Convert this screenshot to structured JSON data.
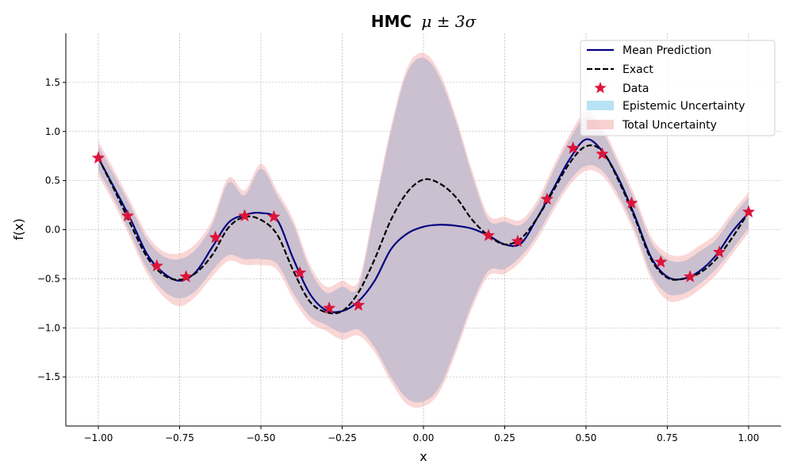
{
  "chart_data": {
    "type": "line",
    "title": "HMC",
    "title_math": "μ ± 3σ",
    "xlabel": "x",
    "ylabel": "f(x)",
    "xlim": [
      -1.1,
      1.1
    ],
    "ylim": [
      -2.0,
      2.0
    ],
    "x_ticks": [
      -1.0,
      -0.75,
      -0.5,
      -0.25,
      0.0,
      0.25,
      0.5,
      0.75,
      1.0
    ],
    "x_tick_labels": [
      "−1.00",
      "−0.75",
      "−0.50",
      "−0.25",
      "0.00",
      "0.25",
      "0.50",
      "0.75",
      "1.00"
    ],
    "y_ticks": [
      -1.5,
      -1.0,
      -0.5,
      0.0,
      0.5,
      1.0,
      1.5
    ],
    "y_tick_labels": [
      "−1.5",
      "−1.0",
      "−0.5",
      "0.0",
      "0.5",
      "1.0",
      "1.5"
    ],
    "grid": true,
    "legend_position": "top-right",
    "colors": {
      "mean": "#00007f",
      "exact": "#000000",
      "data": "#dc143c",
      "epistemic": "#87ceeb",
      "total": "#f4a6a6",
      "band_overlap": "#c7bfcf"
    },
    "x": [
      -1.0,
      -0.95,
      -0.9,
      -0.85,
      -0.8,
      -0.75,
      -0.7,
      -0.65,
      -0.6,
      -0.55,
      -0.5,
      -0.45,
      -0.4,
      -0.35,
      -0.3,
      -0.25,
      -0.2,
      -0.15,
      -0.1,
      -0.05,
      0.0,
      0.05,
      0.1,
      0.15,
      0.2,
      0.25,
      0.3,
      0.35,
      0.4,
      0.45,
      0.5,
      0.55,
      0.6,
      0.65,
      0.7,
      0.75,
      0.8,
      0.85,
      0.9,
      0.95,
      1.0
    ],
    "series": [
      {
        "name": "Mean Prediction",
        "style": "solid",
        "y": [
          0.73,
          0.42,
          0.1,
          -0.25,
          -0.44,
          -0.52,
          -0.43,
          -0.18,
          0.07,
          0.15,
          0.17,
          0.1,
          -0.3,
          -0.65,
          -0.82,
          -0.83,
          -0.73,
          -0.52,
          -0.2,
          -0.04,
          0.03,
          0.05,
          0.04,
          0.01,
          -0.06,
          -0.15,
          -0.14,
          0.12,
          0.42,
          0.72,
          0.92,
          0.8,
          0.52,
          0.14,
          -0.28,
          -0.48,
          -0.5,
          -0.42,
          -0.26,
          -0.02,
          0.17
        ]
      },
      {
        "name": "Exact",
        "style": "dashed",
        "y": [
          0.73,
          0.4,
          0.05,
          -0.28,
          -0.46,
          -0.51,
          -0.44,
          -0.26,
          0.02,
          0.13,
          0.1,
          -0.05,
          -0.42,
          -0.73,
          -0.84,
          -0.83,
          -0.64,
          -0.3,
          0.1,
          0.38,
          0.51,
          0.47,
          0.33,
          0.1,
          -0.06,
          -0.15,
          -0.09,
          0.12,
          0.4,
          0.68,
          0.85,
          0.8,
          0.5,
          0.12,
          -0.3,
          -0.49,
          -0.5,
          -0.44,
          -0.3,
          -0.08,
          0.18
        ]
      }
    ],
    "bands": [
      {
        "name": "Epistemic Uncertainty",
        "lower": [
          0.6,
          0.3,
          -0.05,
          -0.4,
          -0.62,
          -0.7,
          -0.62,
          -0.42,
          -0.26,
          -0.3,
          -0.3,
          -0.35,
          -0.65,
          -0.88,
          -0.97,
          -1.05,
          -1.02,
          -1.2,
          -1.5,
          -1.72,
          -1.75,
          -1.6,
          -1.2,
          -0.75,
          -0.42,
          -0.4,
          -0.27,
          -0.05,
          0.24,
          0.5,
          0.65,
          0.6,
          0.35,
          0.0,
          -0.45,
          -0.65,
          -0.65,
          -0.55,
          -0.4,
          -0.2,
          0.02
        ],
        "upper": [
          0.85,
          0.55,
          0.23,
          -0.1,
          -0.27,
          -0.3,
          -0.2,
          0.05,
          0.48,
          0.35,
          0.62,
          0.35,
          0.05,
          -0.4,
          -0.64,
          -0.58,
          -0.58,
          0.2,
          1.0,
          1.6,
          1.75,
          1.55,
          1.1,
          0.55,
          0.1,
          0.08,
          0.05,
          0.25,
          0.6,
          0.92,
          1.15,
          1.0,
          0.66,
          0.3,
          -0.12,
          -0.3,
          -0.32,
          -0.22,
          -0.1,
          0.13,
          0.33
        ]
      },
      {
        "name": "Total Uncertainty",
        "lower": [
          0.55,
          0.25,
          -0.1,
          -0.45,
          -0.68,
          -0.78,
          -0.68,
          -0.48,
          -0.32,
          -0.36,
          -0.36,
          -0.41,
          -0.71,
          -0.94,
          -1.03,
          -1.12,
          -1.08,
          -1.25,
          -1.55,
          -1.78,
          -1.8,
          -1.65,
          -1.25,
          -0.8,
          -0.47,
          -0.45,
          -0.32,
          -0.1,
          0.19,
          0.45,
          0.6,
          0.55,
          0.3,
          -0.05,
          -0.5,
          -0.72,
          -0.71,
          -0.61,
          -0.46,
          -0.25,
          -0.03
        ],
        "upper": [
          0.9,
          0.6,
          0.28,
          -0.05,
          -0.22,
          -0.24,
          -0.14,
          0.1,
          0.53,
          0.4,
          0.67,
          0.4,
          0.1,
          -0.35,
          -0.58,
          -0.52,
          -0.52,
          0.25,
          1.05,
          1.65,
          1.8,
          1.6,
          1.15,
          0.6,
          0.15,
          0.13,
          0.1,
          0.3,
          0.65,
          0.97,
          1.2,
          1.05,
          0.71,
          0.35,
          -0.07,
          -0.24,
          -0.26,
          -0.16,
          -0.04,
          0.18,
          0.38
        ]
      }
    ],
    "data_points": {
      "name": "Data",
      "x": [
        -1.0,
        -0.91,
        -0.82,
        -0.73,
        -0.64,
        -0.55,
        -0.46,
        -0.38,
        -0.29,
        -0.2,
        0.2,
        0.29,
        0.38,
        0.46,
        0.55,
        0.64,
        0.73,
        0.82,
        0.91,
        1.0
      ],
      "y": [
        0.73,
        0.14,
        -0.37,
        -0.48,
        -0.08,
        0.14,
        0.13,
        -0.44,
        -0.8,
        -0.77,
        -0.06,
        -0.12,
        0.31,
        0.83,
        0.77,
        0.27,
        -0.33,
        -0.48,
        -0.23,
        0.18
      ]
    },
    "legend": [
      "Mean Prediction",
      "Exact",
      "Data",
      "Epistemic Uncertainty",
      "Total Uncertainty"
    ]
  }
}
